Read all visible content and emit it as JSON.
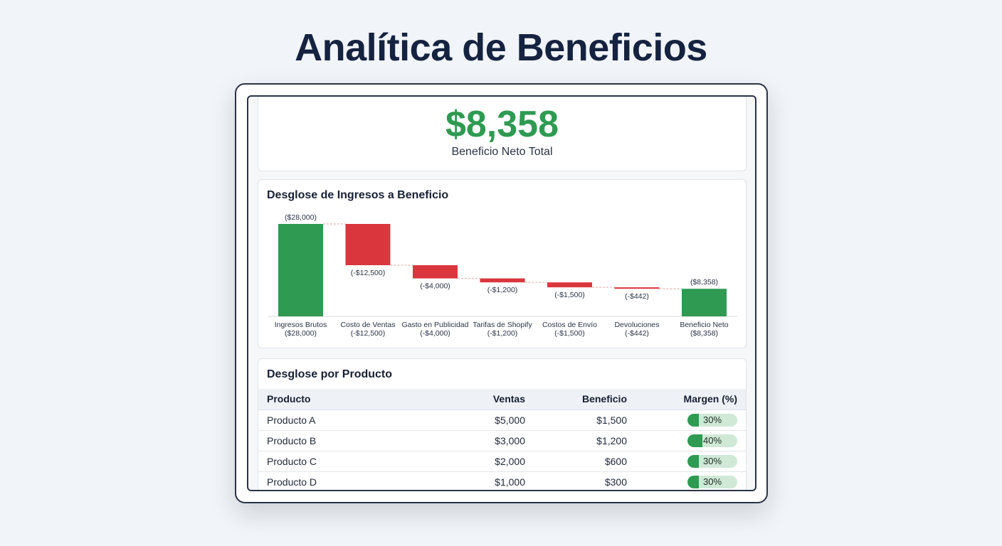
{
  "page": {
    "title": "Analítica de Beneficios"
  },
  "kpi": {
    "value": "$8,358",
    "label": "Beneficio Neto Total"
  },
  "chart_data": {
    "type": "bar",
    "title": "Desglose de Ingresos a Beneficio",
    "subtype": "waterfall",
    "categories": [
      "Ingresos Brutos",
      "Costo de Ventas",
      "Gasto en Publicidad",
      "Tarifas de Shopify",
      "Costos de Envío",
      "Devoluciones",
      "Beneficio Neto"
    ],
    "category_sublabels": [
      "($28,000)",
      "(-$12,500)",
      "(-$4,000)",
      "(-$1,200)",
      "(-$1,500)",
      "(-$442)",
      "($8,358)"
    ],
    "values": [
      28000,
      -12500,
      -4000,
      -1200,
      -1500,
      -442,
      8358
    ],
    "value_labels": [
      "($28,000)",
      "(-$12,500)",
      "(-$4,000)",
      "(-$1,200)",
      "(-$1,500)",
      "(-$442)",
      "($8,358)"
    ],
    "bar_kinds": [
      "total",
      "delta",
      "delta",
      "delta",
      "delta",
      "delta",
      "total"
    ],
    "ylim": [
      0,
      28000
    ],
    "colors": {
      "positive": "#2e9a52",
      "negative": "#d9363e",
      "connector": "#e2a7a7",
      "axis": "#d5d9e0"
    },
    "grid": false,
    "legend": "none"
  },
  "table": {
    "title": "Desglose por Producto",
    "headers": {
      "product": "Producto",
      "sales": "Ventas",
      "profit": "Beneficio",
      "margin": "Margen (%)"
    },
    "rows": [
      {
        "product": "Producto A",
        "sales": "$5,000",
        "profit": "$1,500",
        "margin": "30%",
        "margin_value": 30
      },
      {
        "product": "Producto B",
        "sales": "$3,000",
        "profit": "$1,200",
        "margin": "40%",
        "margin_value": 40
      },
      {
        "product": "Producto C",
        "sales": "$2,000",
        "profit": "$600",
        "margin": "30%",
        "margin_value": 30
      },
      {
        "product": "Producto D",
        "sales": "$1,000",
        "profit": "$300",
        "margin": "30%",
        "margin_value": 30
      }
    ]
  }
}
